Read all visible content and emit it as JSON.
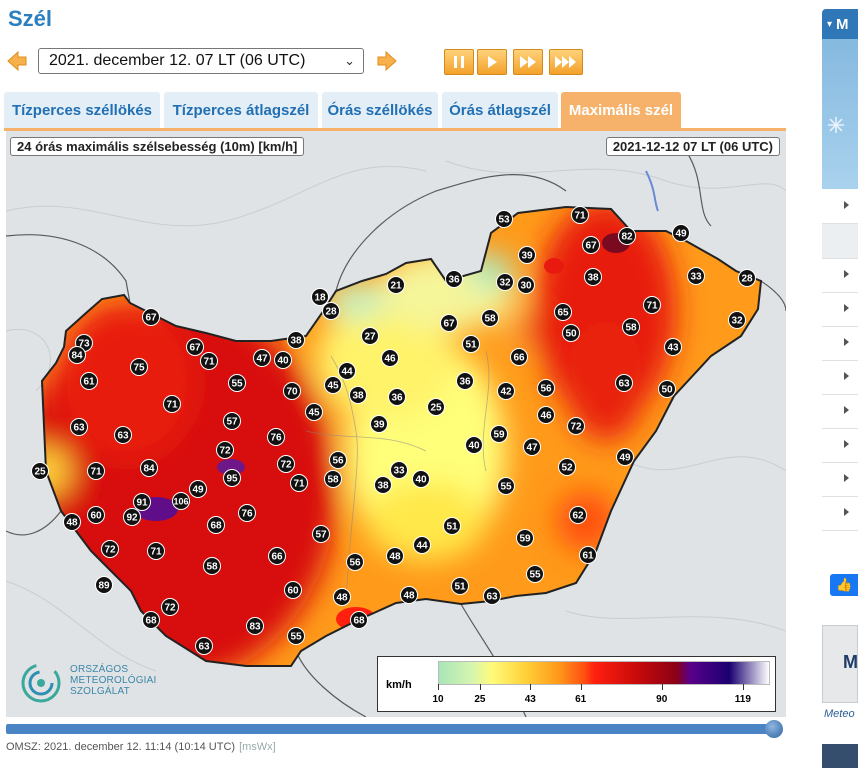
{
  "page_title": "Szél",
  "date_select": {
    "value": "2021. december 12. 07 LT (06  UTC)"
  },
  "tabs": [
    {
      "label": "Tízperces széllökés",
      "active": false
    },
    {
      "label": "Tízperces átlagszél",
      "active": false
    },
    {
      "label": "Órás széllökés",
      "active": false
    },
    {
      "label": "Órás átlagszél",
      "active": false
    },
    {
      "label": "Maximális szél",
      "active": true
    }
  ],
  "map": {
    "title": "24 órás maximális szélsebesség (10m) [km/h]",
    "timestamp": "2021-12-12 07 LT (06 UTC)",
    "legend": {
      "unit": "km/h",
      "ticks": [
        {
          "label": "10",
          "v": 10
        },
        {
          "label": "25",
          "v": 25
        },
        {
          "label": "43",
          "v": 43
        },
        {
          "label": "61",
          "v": 61
        },
        {
          "label": "90",
          "v": 90
        },
        {
          "label": "119",
          "v": 119
        }
      ]
    },
    "stations": [
      {
        "v": "53"
      },
      {
        "v": "71"
      },
      {
        "v": "82"
      },
      {
        "v": "49"
      },
      {
        "v": "39"
      },
      {
        "v": "67"
      },
      {
        "v": "38"
      },
      {
        "v": "33"
      },
      {
        "v": "28"
      },
      {
        "v": "36"
      },
      {
        "v": "32"
      },
      {
        "v": "30"
      },
      {
        "v": "21"
      },
      {
        "v": "18"
      },
      {
        "v": "28"
      },
      {
        "v": "67"
      },
      {
        "v": "58"
      },
      {
        "v": "65"
      },
      {
        "v": "71"
      },
      {
        "v": "32"
      },
      {
        "v": "58"
      },
      {
        "v": "50"
      },
      {
        "v": "51"
      },
      {
        "v": "27"
      },
      {
        "v": "66"
      },
      {
        "v": "43"
      },
      {
        "v": "73"
      },
      {
        "v": "84"
      },
      {
        "v": "67"
      },
      {
        "v": "67"
      },
      {
        "v": "71"
      },
      {
        "v": "38"
      },
      {
        "v": "47"
      },
      {
        "v": "40"
      },
      {
        "v": "46"
      },
      {
        "v": "44"
      },
      {
        "v": "61"
      },
      {
        "v": "75"
      },
      {
        "v": "55"
      },
      {
        "v": "70"
      },
      {
        "v": "45"
      },
      {
        "v": "38"
      },
      {
        "v": "36"
      },
      {
        "v": "36"
      },
      {
        "v": "42"
      },
      {
        "v": "56"
      },
      {
        "v": "63"
      },
      {
        "v": "50"
      },
      {
        "v": "71"
      },
      {
        "v": "25"
      },
      {
        "v": "45"
      },
      {
        "v": "63"
      },
      {
        "v": "63"
      },
      {
        "v": "57"
      },
      {
        "v": "39"
      },
      {
        "v": "46"
      },
      {
        "v": "72"
      },
      {
        "v": "59"
      },
      {
        "v": "76"
      },
      {
        "v": "40"
      },
      {
        "v": "47"
      },
      {
        "v": "72"
      },
      {
        "v": "56"
      },
      {
        "v": "25"
      },
      {
        "v": "71"
      },
      {
        "v": "84"
      },
      {
        "v": "95"
      },
      {
        "v": "72"
      },
      {
        "v": "58"
      },
      {
        "v": "71"
      },
      {
        "v": "33"
      },
      {
        "v": "38"
      },
      {
        "v": "40"
      },
      {
        "v": "52"
      },
      {
        "v": "49"
      },
      {
        "v": "91"
      },
      {
        "v": "106"
      },
      {
        "v": "49"
      },
      {
        "v": "55"
      },
      {
        "v": "48"
      },
      {
        "v": "60"
      },
      {
        "v": "92"
      },
      {
        "v": "76"
      },
      {
        "v": "68"
      },
      {
        "v": "62"
      },
      {
        "v": "51"
      },
      {
        "v": "57"
      },
      {
        "v": "59"
      },
      {
        "v": "72"
      },
      {
        "v": "71"
      },
      {
        "v": "66"
      },
      {
        "v": "44"
      },
      {
        "v": "56"
      },
      {
        "v": "48"
      },
      {
        "v": "61"
      },
      {
        "v": "58"
      },
      {
        "v": "55"
      },
      {
        "v": "89"
      },
      {
        "v": "60"
      },
      {
        "v": "48"
      },
      {
        "v": "51"
      },
      {
        "v": "63"
      },
      {
        "v": "72"
      },
      {
        "v": "48"
      },
      {
        "v": "68"
      },
      {
        "v": "83"
      },
      {
        "v": "55"
      },
      {
        "v": "68"
      },
      {
        "v": "63"
      }
    ]
  },
  "logo": {
    "line1": "ORSZÁGOS",
    "line2": "METEOROLÓGIAI",
    "line3": "SZOLGÁLAT"
  },
  "footer": {
    "text": "OMSZ: 2021. december 12. 11:14 (10:14  UTC)",
    "sub": "[msWx]"
  },
  "sidebar": {
    "head": "M",
    "caption": "Meteo",
    "box_label": "M",
    "like": "👍"
  },
  "colors": {
    "accent": "#f6b26b",
    "tab_text": "#2170b4",
    "title": "#2a7fc0"
  }
}
